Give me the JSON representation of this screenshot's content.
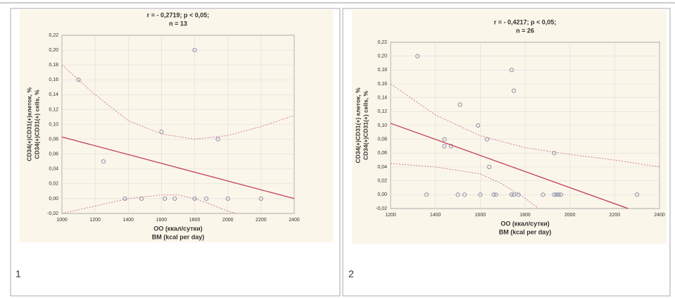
{
  "chart_data": [
    {
      "type": "scatter",
      "title": "r = - 0,2719; p < 0,05;",
      "subtitle": "n = 13",
      "x_label": [
        "ОО (ккал/сутки)",
        "BM (kcal per day)"
      ],
      "y_label": [
        "CD34(+)CD31(+)клеток, %",
        "CD34(+)CD31(+) cells, %"
      ],
      "xlim": [
        1000,
        2400
      ],
      "xticks": [
        1000,
        1200,
        1400,
        1600,
        1800,
        2000,
        2200,
        2400
      ],
      "ylim": [
        -0.02,
        0.22
      ],
      "yticks": [
        {
          "value": -0.02,
          "label": "-0,02"
        },
        {
          "value": 0,
          "label": "0,00"
        },
        {
          "value": 0.02,
          "label": "0,02"
        },
        {
          "value": 0.04,
          "label": "0,04"
        },
        {
          "value": 0.06,
          "label": "0,06"
        },
        {
          "value": 0.08,
          "label": "0,08"
        },
        {
          "value": 0.1,
          "label": "0,10"
        },
        {
          "value": 0.12,
          "label": "0,12"
        },
        {
          "value": 0.14,
          "label": "0,14"
        },
        {
          "value": 0.16,
          "label": "0,16"
        },
        {
          "value": 0.18,
          "label": "0,18"
        },
        {
          "value": 0.2,
          "label": "0,20"
        },
        {
          "value": 0.22,
          "label": "0,22"
        }
      ],
      "grid": true,
      "series": [
        {
          "type": "scatter",
          "color": "#8c90a8",
          "x": [
            1100,
            1250,
            1380,
            1480,
            1600,
            1620,
            1680,
            1800,
            1800,
            1870,
            1940,
            2000,
            2200
          ],
          "values": [
            0.16,
            0.05,
            0,
            0,
            0.09,
            0,
            0,
            0.2,
            0,
            0,
            0.08,
            0,
            0
          ]
        },
        {
          "type": "line",
          "color": "#c0405a",
          "x": [
            1000,
            2400
          ],
          "values": [
            0.083,
            0
          ]
        },
        {
          "type": "line",
          "dash": true,
          "color": "#c87090",
          "x": [
            1000,
            1200,
            1400,
            1600,
            1800,
            2000,
            2200,
            2400
          ],
          "values": [
            0.18,
            0.14,
            0.105,
            0.087,
            0.08,
            0.085,
            0.097,
            0.112
          ]
        },
        {
          "type": "line",
          "dash": true,
          "color": "#c87090",
          "x": [
            1000,
            1200,
            1400,
            1600,
            1700,
            1800,
            1900,
            2000,
            2050
          ],
          "values": [
            -0.02,
            -0.01,
            0.0,
            0.005,
            0.005,
            0.0,
            -0.008,
            -0.017,
            -0.02
          ]
        }
      ]
    },
    {
      "type": "scatter",
      "title": "r = - 0,4217; p < 0,05;",
      "subtitle": "n = 26",
      "x_label": [
        "ОО (ккал/сутки)",
        "BM (kcal per day)"
      ],
      "y_label": [
        "CD34(+)CD31(+) клеток, %",
        "CD34(+)CD31(+) cells, %"
      ],
      "xlim": [
        1200,
        2400
      ],
      "xticks": [
        1200,
        1400,
        1600,
        1800,
        2000,
        2200,
        2400
      ],
      "ylim": [
        -0.02,
        0.22
      ],
      "yticks": [
        {
          "value": -0.02,
          "label": "-0,02"
        },
        {
          "value": 0,
          "label": "0,00"
        },
        {
          "value": 0.02,
          "label": "0,02"
        },
        {
          "value": 0.04,
          "label": "0,04"
        },
        {
          "value": 0.06,
          "label": "0,06"
        },
        {
          "value": 0.08,
          "label": "0,08"
        },
        {
          "value": 0.1,
          "label": "0,10"
        },
        {
          "value": 0.12,
          "label": "0,12"
        },
        {
          "value": 0.14,
          "label": "0,14"
        },
        {
          "value": 0.16,
          "label": "0,16"
        },
        {
          "value": 0.18,
          "label": "0,18"
        },
        {
          "value": 0.2,
          "label": "0,20"
        },
        {
          "value": 0.22,
          "label": "0,22"
        }
      ],
      "grid": true,
      "series": [
        {
          "type": "scatter",
          "color": "#8c90a8",
          "x": [
            1320,
            1360,
            1440,
            1440,
            1470,
            1500,
            1510,
            1530,
            1590,
            1600,
            1630,
            1640,
            1660,
            1670,
            1740,
            1750,
            1740,
            1750,
            1770,
            1880,
            1930,
            1930,
            1940,
            1950,
            1960,
            2300
          ],
          "values": [
            0.2,
            0,
            0.08,
            0.07,
            0.07,
            0,
            0.13,
            0,
            0.1,
            0,
            0.08,
            0.04,
            0,
            0,
            0.18,
            0.15,
            0,
            0,
            0,
            0,
            0.06,
            0,
            0,
            0,
            0,
            0
          ]
        },
        {
          "type": "line",
          "color": "#c0405a",
          "x": [
            1200,
            2260
          ],
          "values": [
            0.103,
            -0.02
          ]
        },
        {
          "type": "line",
          "dash": true,
          "color": "#c87090",
          "x": [
            1200,
            1400,
            1600,
            1800,
            2000,
            2200,
            2400
          ],
          "values": [
            0.16,
            0.115,
            0.085,
            0.068,
            0.058,
            0.05,
            0.04
          ]
        },
        {
          "type": "line",
          "dash": true,
          "color": "#c87090",
          "x": [
            1200,
            1400,
            1600,
            1700,
            1800,
            1860
          ],
          "values": [
            0.045,
            0.04,
            0.03,
            0.015,
            -0.005,
            -0.02
          ]
        }
      ]
    }
  ],
  "panel_numbers": [
    "1",
    "2"
  ]
}
